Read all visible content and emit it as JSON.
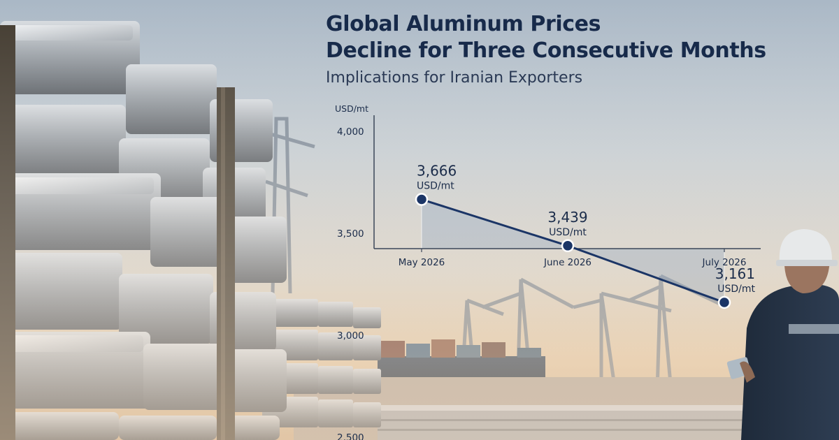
{
  "header": {
    "title_line1": "Global Aluminum Prices",
    "title_line2": "Decline for Three Consecutive Months",
    "subtitle": "Implications for Iranian Exporters"
  },
  "chart_data": {
    "type": "area",
    "title": "Global Aluminum Prices Decline for Three Consecutive Months",
    "subtitle": "Implications for Iranian Exporters",
    "ylabel": "USD/mt",
    "xlabel": "",
    "categories": [
      "May 2026",
      "June 2026",
      "July 2026"
    ],
    "series": [
      {
        "values": [
          3666,
          3439,
          3161
        ],
        "data_labels": [
          "3,666",
          "3,439",
          "3,161"
        ],
        "unit_label": "USD/mt"
      }
    ],
    "yticks": [
      4000,
      3500,
      3000,
      2500
    ],
    "ytick_labels": [
      "4,000",
      "3,500",
      "3,000",
      "2,500"
    ],
    "ylim": [
      2500,
      4000
    ],
    "grid": false,
    "colors": {
      "line": "#1b3566",
      "marker": "#1b3566",
      "area": "#7f9ac0",
      "text": "#1b2c4a"
    }
  }
}
